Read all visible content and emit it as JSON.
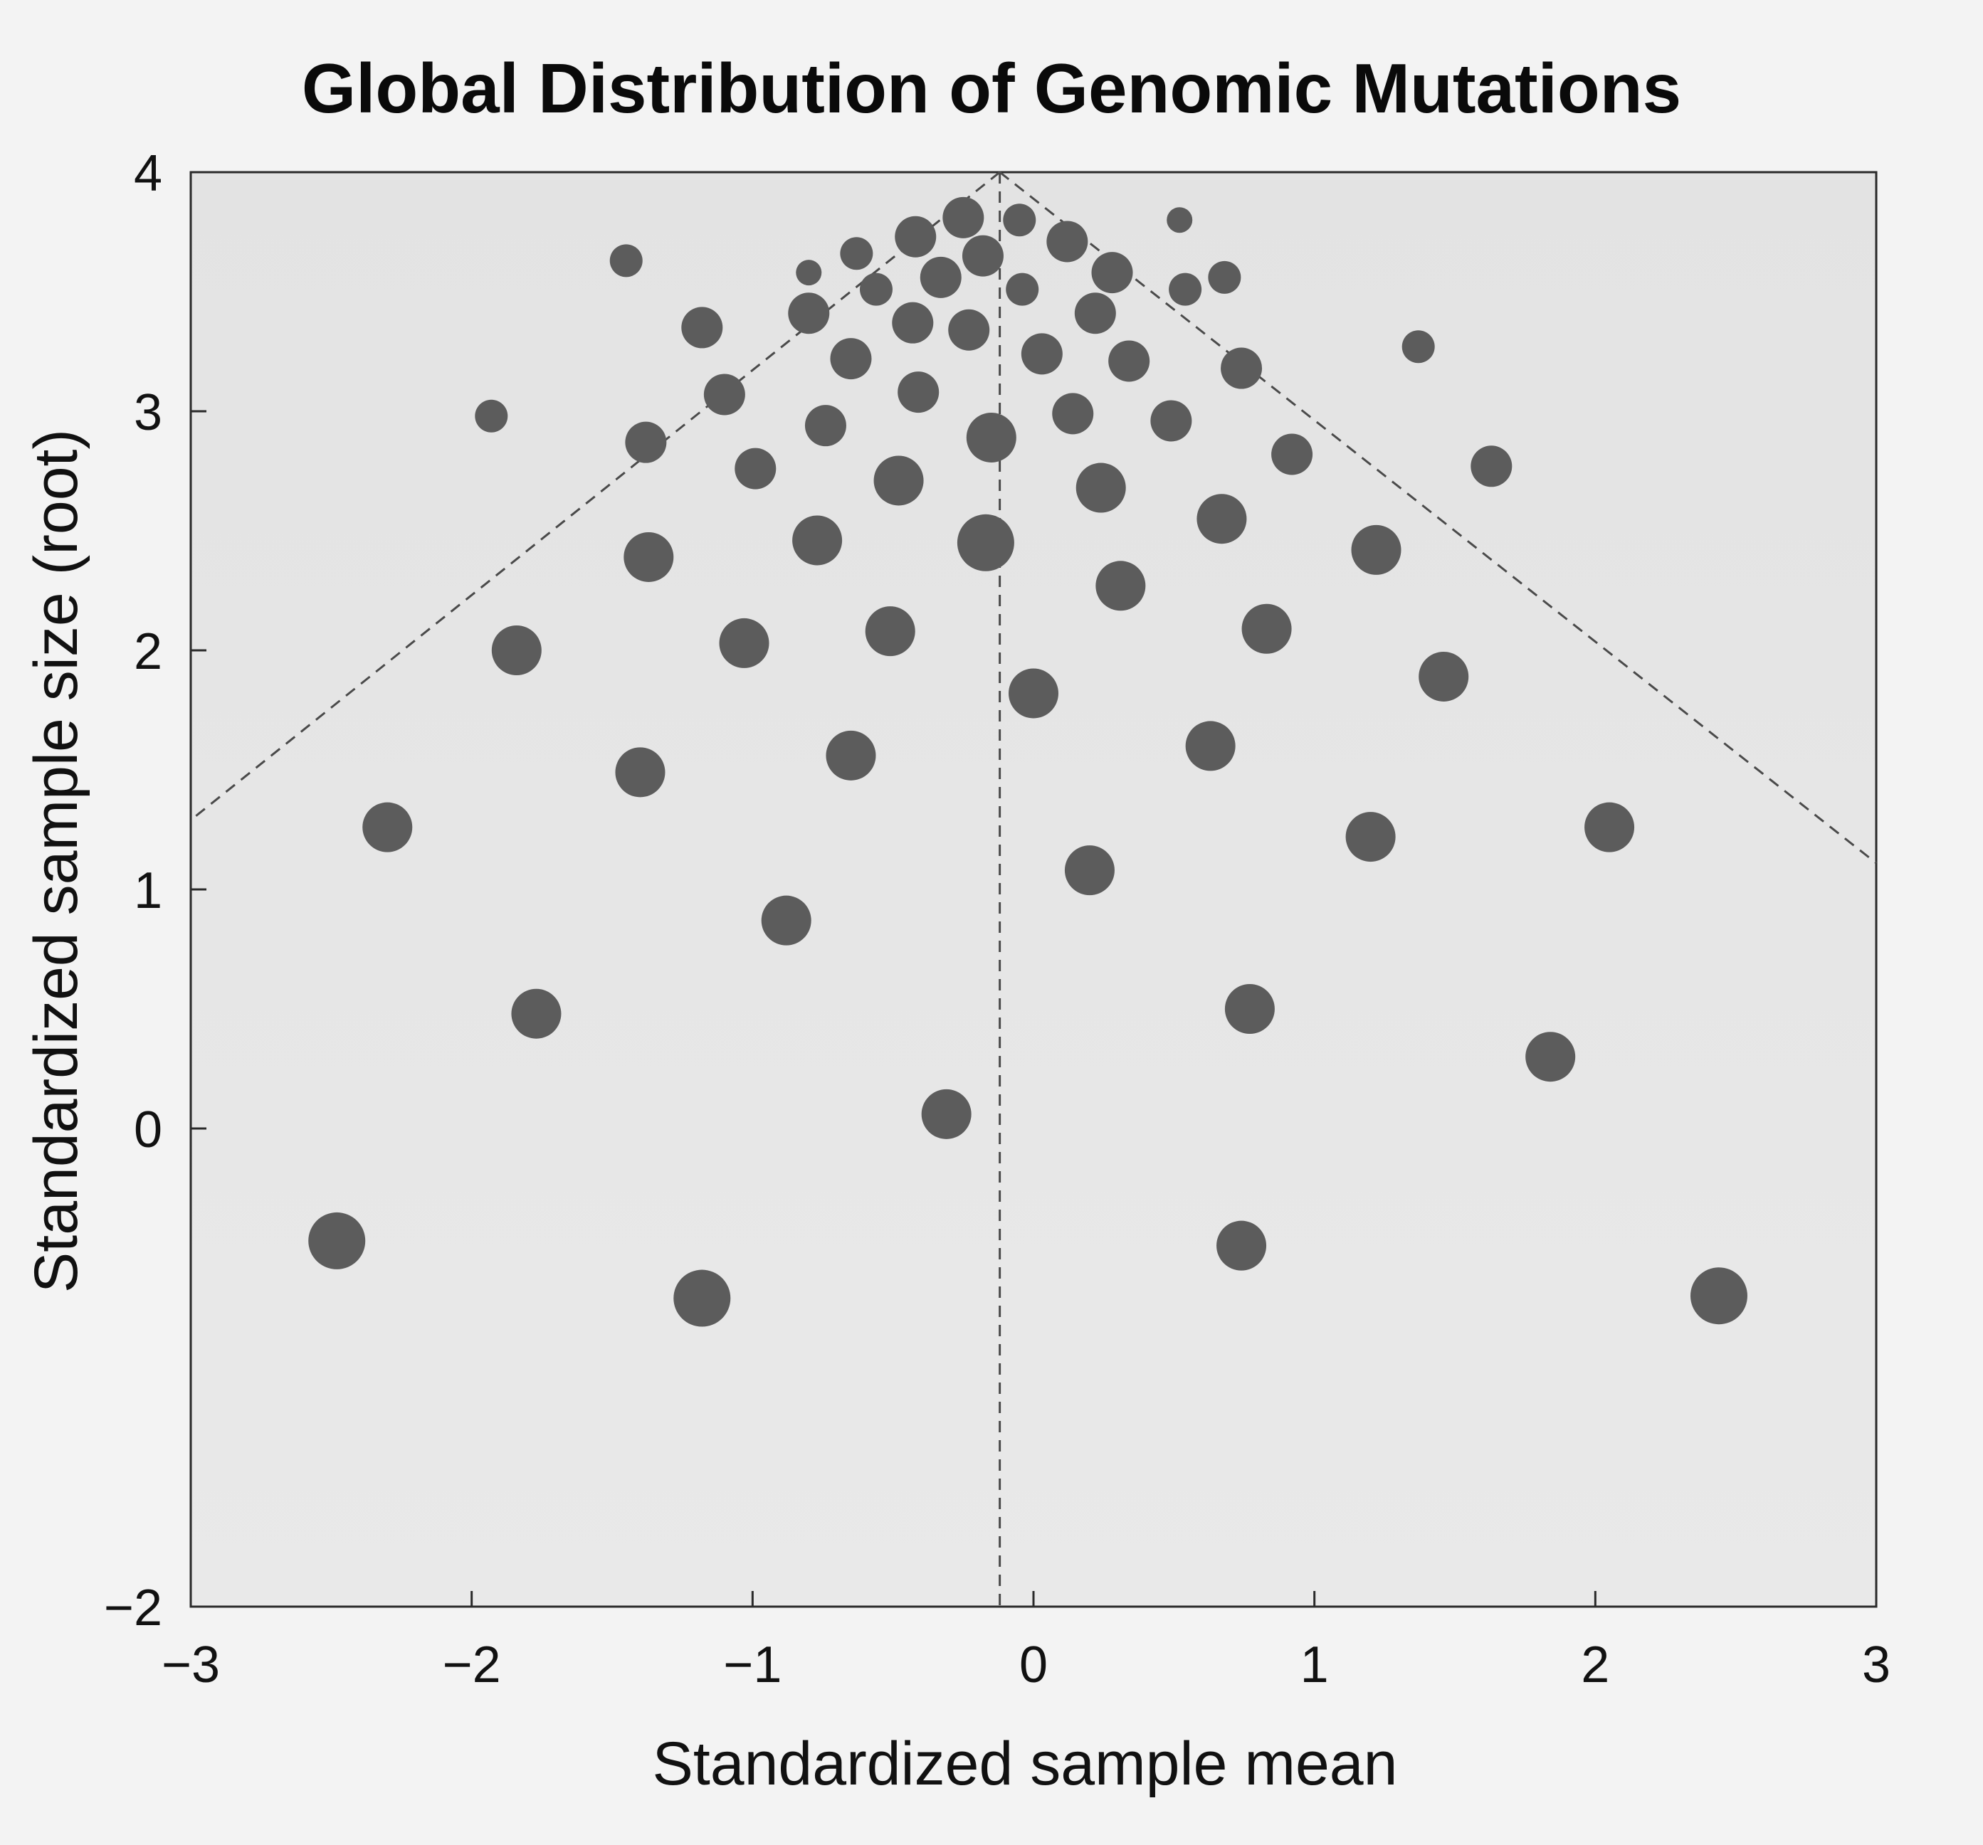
{
  "chart_data": {
    "type": "scatter",
    "title": "Global Distribution of Genomic Mutations",
    "xlabel": "Standardized sample mean",
    "ylabel": "Standardized sample size (root)",
    "xlim": [
      -3,
      3
    ],
    "ylim": [
      -2,
      4
    ],
    "xticks": [
      -3,
      -2,
      -1,
      0,
      1,
      2,
      3
    ],
    "yticks": [
      -2,
      0,
      1,
      2,
      3,
      4
    ],
    "xtick_labels": [
      "−3",
      "−2",
      "−1",
      "0",
      "1",
      "2",
      "3"
    ],
    "ytick_labels": [
      "−2",
      "0",
      "1",
      "2",
      "3",
      "4"
    ],
    "grid": false,
    "marker_color": "#5c5c5c",
    "plot_background": "#e6e6e6",
    "funnel": {
      "apex": [
        -0.12,
        4.0
      ],
      "left_end": [
        -3.0,
        1.29
      ],
      "right_end": [
        3.0,
        1.11
      ],
      "center_line_x": -0.12,
      "style": "dashed"
    },
    "points": [
      {
        "x": -0.25,
        "y": 3.81,
        "s": 3
      },
      {
        "x": -0.05,
        "y": 3.8,
        "s": 2
      },
      {
        "x": 0.52,
        "y": 3.8,
        "s": 1
      },
      {
        "x": -0.42,
        "y": 3.73,
        "s": 3
      },
      {
        "x": 0.12,
        "y": 3.71,
        "s": 3
      },
      {
        "x": -0.63,
        "y": 3.66,
        "s": 2
      },
      {
        "x": -0.18,
        "y": 3.65,
        "s": 3
      },
      {
        "x": -1.45,
        "y": 3.63,
        "s": 2
      },
      {
        "x": -0.8,
        "y": 3.58,
        "s": 1
      },
      {
        "x": 0.28,
        "y": 3.58,
        "s": 3
      },
      {
        "x": -0.33,
        "y": 3.56,
        "s": 3
      },
      {
        "x": 0.68,
        "y": 3.56,
        "s": 2
      },
      {
        "x": -0.56,
        "y": 3.51,
        "s": 2
      },
      {
        "x": -0.04,
        "y": 3.51,
        "s": 2
      },
      {
        "x": 0.54,
        "y": 3.51,
        "s": 2
      },
      {
        "x": -0.8,
        "y": 3.41,
        "s": 3
      },
      {
        "x": 0.22,
        "y": 3.41,
        "s": 3
      },
      {
        "x": -0.43,
        "y": 3.37,
        "s": 3
      },
      {
        "x": -1.18,
        "y": 3.35,
        "s": 3
      },
      {
        "x": -0.23,
        "y": 3.34,
        "s": 3
      },
      {
        "x": 1.37,
        "y": 3.27,
        "s": 2
      },
      {
        "x": 0.03,
        "y": 3.24,
        "s": 3
      },
      {
        "x": -0.65,
        "y": 3.22,
        "s": 3
      },
      {
        "x": 0.34,
        "y": 3.21,
        "s": 3
      },
      {
        "x": 0.74,
        "y": 3.18,
        "s": 3
      },
      {
        "x": -1.1,
        "y": 3.07,
        "s": 3
      },
      {
        "x": -0.41,
        "y": 3.08,
        "s": 3
      },
      {
        "x": 0.14,
        "y": 2.99,
        "s": 3
      },
      {
        "x": -1.93,
        "y": 2.98,
        "s": 2
      },
      {
        "x": 0.49,
        "y": 2.96,
        "s": 3
      },
      {
        "x": -0.74,
        "y": 2.94,
        "s": 3
      },
      {
        "x": -0.15,
        "y": 2.89,
        "s": 4
      },
      {
        "x": -1.38,
        "y": 2.87,
        "s": 3
      },
      {
        "x": 0.92,
        "y": 2.82,
        "s": 3
      },
      {
        "x": 1.63,
        "y": 2.77,
        "s": 3
      },
      {
        "x": -0.99,
        "y": 2.76,
        "s": 3
      },
      {
        "x": -0.48,
        "y": 2.71,
        "s": 4
      },
      {
        "x": 0.24,
        "y": 2.68,
        "s": 4
      },
      {
        "x": 0.67,
        "y": 2.55,
        "s": 4
      },
      {
        "x": -0.77,
        "y": 2.46,
        "s": 4
      },
      {
        "x": -0.17,
        "y": 2.45,
        "s": 5
      },
      {
        "x": 1.22,
        "y": 2.42,
        "s": 4
      },
      {
        "x": -1.37,
        "y": 2.39,
        "s": 4
      },
      {
        "x": 0.31,
        "y": 2.27,
        "s": 4
      },
      {
        "x": -0.51,
        "y": 2.08,
        "s": 4
      },
      {
        "x": 0.83,
        "y": 2.09,
        "s": 4
      },
      {
        "x": -1.03,
        "y": 2.03,
        "s": 4
      },
      {
        "x": -1.84,
        "y": 2.0,
        "s": 4
      },
      {
        "x": 1.46,
        "y": 1.89,
        "s": 4
      },
      {
        "x": 0.0,
        "y": 1.82,
        "s": 4
      },
      {
        "x": 0.63,
        "y": 1.6,
        "s": 4
      },
      {
        "x": -0.65,
        "y": 1.56,
        "s": 4
      },
      {
        "x": -1.4,
        "y": 1.49,
        "s": 4
      },
      {
        "x": -2.3,
        "y": 1.26,
        "s": 4
      },
      {
        "x": 2.05,
        "y": 1.26,
        "s": 4
      },
      {
        "x": 1.2,
        "y": 1.22,
        "s": 4
      },
      {
        "x": 0.2,
        "y": 1.08,
        "s": 4
      },
      {
        "x": -0.88,
        "y": 0.87,
        "s": 4
      },
      {
        "x": -1.77,
        "y": 0.48,
        "s": 4
      },
      {
        "x": 0.77,
        "y": 0.5,
        "s": 4
      },
      {
        "x": 1.84,
        "y": 0.3,
        "s": 4
      },
      {
        "x": -0.31,
        "y": 0.06,
        "s": 4
      },
      {
        "x": -2.48,
        "y": -0.47,
        "s": 5
      },
      {
        "x": 0.74,
        "y": -0.49,
        "s": 4
      },
      {
        "x": -1.18,
        "y": -0.71,
        "s": 5
      },
      {
        "x": 2.44,
        "y": -0.7,
        "s": 5
      }
    ]
  }
}
